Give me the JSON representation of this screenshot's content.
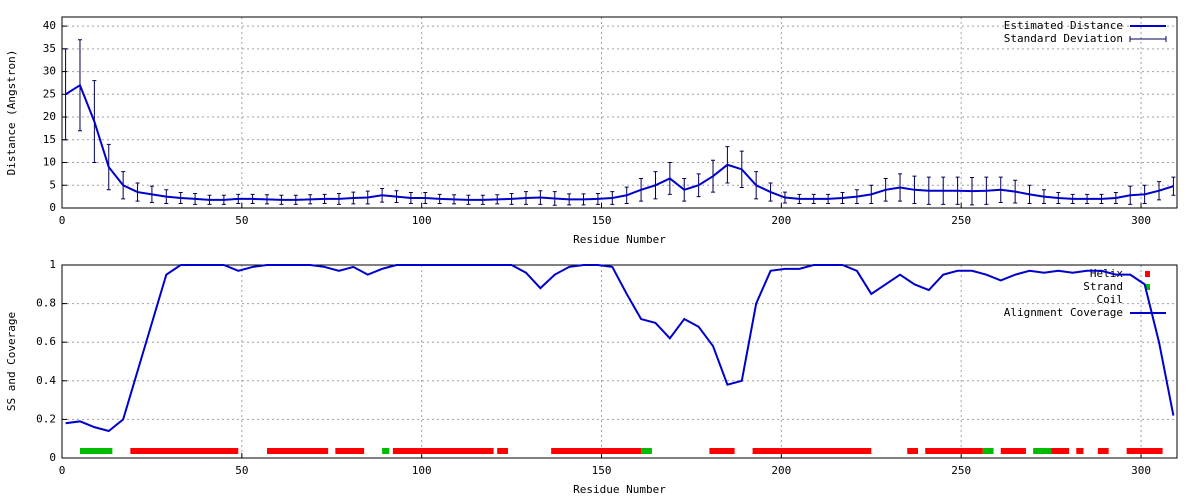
{
  "chart_data": [
    {
      "type": "line",
      "xlabel": "Residue Number",
      "ylabel": "Distance (Angstron)",
      "xlim": [
        0,
        310
      ],
      "xticks": [
        0,
        50,
        100,
        150,
        200,
        250,
        300
      ],
      "ylim": [
        0,
        42
      ],
      "yticks": [
        0,
        5,
        10,
        15,
        20,
        25,
        30,
        35,
        40
      ],
      "grid": true,
      "legend": "top-right",
      "x": [
        1,
        5,
        9,
        13,
        17,
        21,
        25,
        29,
        33,
        37,
        41,
        45,
        49,
        53,
        57,
        61,
        65,
        69,
        73,
        77,
        81,
        85,
        89,
        93,
        97,
        101,
        105,
        109,
        113,
        117,
        121,
        125,
        129,
        133,
        137,
        141,
        145,
        149,
        153,
        157,
        161,
        165,
        169,
        173,
        177,
        181,
        185,
        189,
        193,
        197,
        201,
        205,
        209,
        213,
        217,
        221,
        225,
        229,
        233,
        237,
        241,
        245,
        249,
        253,
        257,
        261,
        265,
        269,
        273,
        277,
        281,
        285,
        289,
        293,
        297,
        301,
        305,
        309
      ],
      "series": [
        {
          "name": "Estimated Distance",
          "color": "#0000cc",
          "error_name": "Standard Deviation",
          "error_color": "#000055",
          "values": [
            25,
            27,
            19,
            9,
            5,
            3.5,
            3,
            2.5,
            2.2,
            2,
            1.8,
            1.8,
            2,
            2,
            1.9,
            1.8,
            1.8,
            1.9,
            2,
            2,
            2.2,
            2.3,
            2.8,
            2.5,
            2.2,
            2.2,
            2,
            1.9,
            1.8,
            1.8,
            1.9,
            2,
            2.2,
            2.3,
            2.1,
            1.9,
            1.9,
            2,
            2.2,
            2.8,
            4,
            5,
            6.5,
            4,
            5,
            7,
            9.5,
            8.5,
            5,
            3.5,
            2.3,
            2,
            2,
            2,
            2.2,
            2.5,
            3,
            4,
            4.5,
            4,
            3.8,
            3.8,
            3.8,
            3.7,
            3.8,
            4,
            3.6,
            3,
            2.5,
            2.2,
            2,
            2,
            2,
            2.2,
            2.8,
            3,
            3.8,
            4.8
          ],
          "errors": [
            10,
            10,
            9,
            5,
            3,
            2,
            1.8,
            1.5,
            1.2,
            1.2,
            1,
            1,
            1,
            1,
            1,
            1,
            1,
            1,
            1,
            1.2,
            1.3,
            1.4,
            1.5,
            1.3,
            1.2,
            1.2,
            1,
            1,
            1,
            1,
            1,
            1.2,
            1.4,
            1.5,
            1.5,
            1.2,
            1.2,
            1.2,
            1.4,
            1.8,
            2.5,
            3,
            3.5,
            2.5,
            2.5,
            3.5,
            4,
            4,
            3,
            2,
            1.2,
            1,
            1,
            1,
            1.2,
            1.5,
            2,
            2.5,
            3,
            3,
            3,
            3,
            3,
            3,
            3,
            2.8,
            2.5,
            2,
            1.5,
            1.2,
            1,
            1,
            1,
            1.2,
            2,
            2,
            2,
            2
          ]
        }
      ]
    },
    {
      "type": "line",
      "xlabel": "Residue Number",
      "ylabel": "SS and Coverage",
      "xlim": [
        0,
        310
      ],
      "xticks": [
        0,
        50,
        100,
        150,
        200,
        250,
        300
      ],
      "ylim": [
        0,
        1
      ],
      "yticks": [
        0,
        0.2,
        0.4,
        0.6,
        0.8,
        1
      ],
      "grid": true,
      "legend": "top-right",
      "x": [
        1,
        5,
        9,
        13,
        17,
        21,
        25,
        29,
        33,
        37,
        41,
        45,
        49,
        53,
        57,
        61,
        65,
        69,
        73,
        77,
        81,
        85,
        89,
        93,
        97,
        101,
        105,
        109,
        113,
        117,
        121,
        125,
        129,
        133,
        137,
        141,
        145,
        149,
        153,
        157,
        161,
        165,
        169,
        173,
        177,
        181,
        185,
        189,
        193,
        197,
        201,
        205,
        209,
        213,
        217,
        221,
        225,
        229,
        233,
        237,
        241,
        245,
        249,
        253,
        257,
        261,
        265,
        269,
        273,
        277,
        281,
        285,
        289,
        293,
        297,
        301,
        305,
        309
      ],
      "series": [
        {
          "name": "Helix",
          "color": "#ff0000",
          "segments": [
            [
              19,
              49
            ],
            [
              57,
              74
            ],
            [
              76,
              84
            ],
            [
              92,
              120
            ],
            [
              121,
              124
            ],
            [
              136,
              161
            ],
            [
              180,
              187
            ],
            [
              192,
              225
            ],
            [
              235,
              238
            ],
            [
              240,
              256
            ],
            [
              261,
              268
            ],
            [
              275,
              280
            ],
            [
              282,
              284
            ],
            [
              288,
              291
            ],
            [
              296,
              306
            ]
          ]
        },
        {
          "name": "Strand",
          "color": "#00bb00",
          "segments": [
            [
              5,
              14
            ],
            [
              89,
              91
            ],
            [
              161,
              164
            ],
            [
              256,
              259
            ],
            [
              270,
              275
            ]
          ]
        },
        {
          "name": "Coil"
        },
        {
          "name": "Alignment Coverage",
          "color": "#0000cc",
          "values": [
            0.18,
            0.19,
            0.16,
            0.14,
            0.2,
            0.45,
            0.7,
            0.95,
            1,
            1,
            1,
            1,
            0.97,
            0.99,
            1,
            1,
            1,
            1,
            0.99,
            0.97,
            0.99,
            0.95,
            0.98,
            1,
            1,
            1,
            1,
            1,
            1,
            1,
            1,
            1,
            0.96,
            0.88,
            0.95,
            0.99,
            1,
            1,
            0.99,
            0.85,
            0.72,
            0.7,
            0.62,
            0.72,
            0.68,
            0.58,
            0.38,
            0.4,
            0.8,
            0.97,
            0.98,
            0.98,
            1,
            1,
            1,
            0.97,
            0.85,
            0.9,
            0.95,
            0.9,
            0.87,
            0.95,
            0.97,
            0.97,
            0.95,
            0.92,
            0.95,
            0.97,
            0.96,
            0.97,
            0.96,
            0.97,
            0.97,
            0.95,
            0.95,
            0.9,
            0.6,
            0.22
          ]
        }
      ]
    }
  ]
}
